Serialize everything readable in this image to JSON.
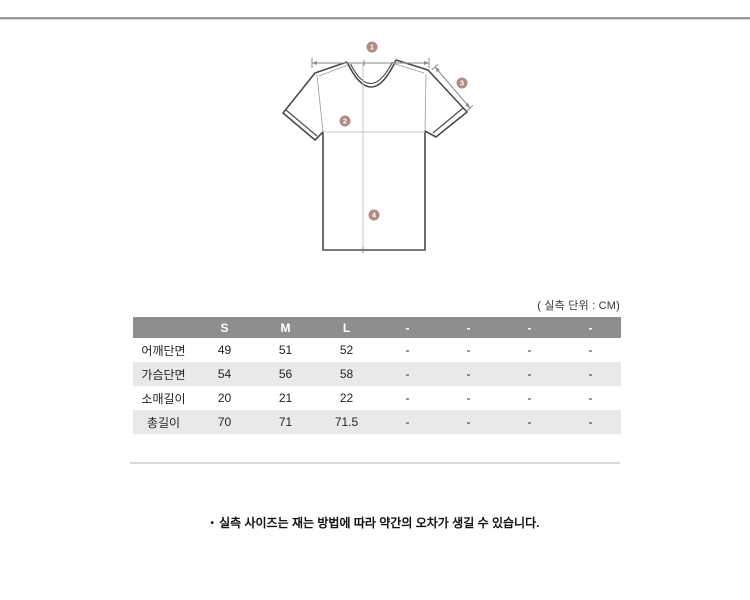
{
  "diagram": {
    "marker_color": "#b18a84",
    "markers": [
      {
        "num": "1"
      },
      {
        "num": "2"
      },
      {
        "num": "3"
      },
      {
        "num": "4"
      }
    ]
  },
  "size_table": {
    "unit_label": "( 실측 단위 : CM)",
    "columns": [
      "",
      "S",
      "M",
      "L",
      "-",
      "-",
      "-",
      "-"
    ],
    "rows": [
      {
        "label": "어깨단면",
        "values": [
          "49",
          "51",
          "52",
          "-",
          "-",
          "-",
          "-"
        ]
      },
      {
        "label": "가슴단면",
        "values": [
          "54",
          "56",
          "58",
          "-",
          "-",
          "-",
          "-"
        ]
      },
      {
        "label": "소매길이",
        "values": [
          "20",
          "21",
          "22",
          "-",
          "-",
          "-",
          "-"
        ]
      },
      {
        "label": "총길이",
        "values": [
          "70",
          "71",
          "71.5",
          "-",
          "-",
          "-",
          "-"
        ]
      }
    ],
    "header_bg": "#8e8e8e",
    "stripe_bg": "#e9e9e9"
  },
  "note": {
    "bullet": "•",
    "text": "실측 사이즈는 재는 방법에 따라 약간의 오차가 생길 수 있습니다."
  }
}
